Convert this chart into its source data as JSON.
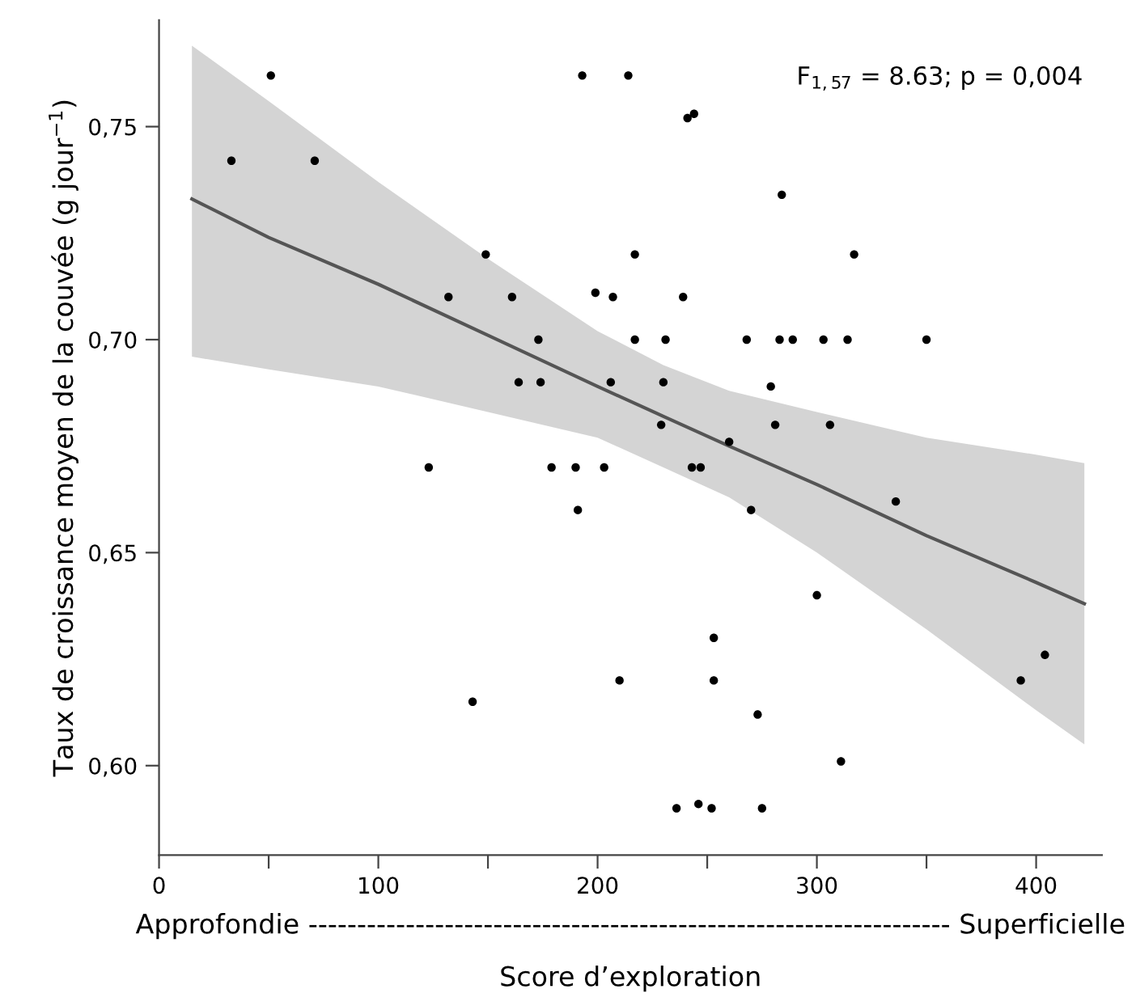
{
  "chart_data": {
    "type": "scatter",
    "xlabel": "Score d’exploration",
    "ylabel": "Taux de croissance moyen de la couvée (g jour$^{−1}$)",
    "annotations": [
      "F$_{1,57}$ = 8.63; p = 0,004",
      "Approfondie ------------------------------------------------------------------ Superficielle"
    ],
    "xlim": [
      0,
      430
    ],
    "ylim": [
      0.579,
      0.775
    ],
    "xticks": [
      0,
      {
        "value": 50,
        "label": null
      },
      100,
      {
        "value": 150,
        "label": null
      },
      200,
      {
        "value": 250,
        "label": null
      },
      300,
      {
        "value": 350,
        "label": null
      },
      400
    ],
    "yticks": [
      {
        "value": 0.6,
        "label": "0,60"
      },
      {
        "value": 0.65,
        "label": "0,65"
      },
      {
        "value": 0.7,
        "label": "0,70"
      },
      {
        "value": 0.75,
        "label": "0,75"
      }
    ],
    "grid": false,
    "legend": false,
    "series": [
      {
        "type": "line",
        "color": "#555555",
        "marker": "none",
        "line_style": "solid",
        "x": [
          15,
          50,
          100,
          150,
          200,
          230,
          260,
          300,
          350,
          400,
          422
        ],
        "values": [
          0.733,
          0.724,
          0.713,
          0.701,
          0.689,
          0.682,
          0.675,
          0.666,
          0.654,
          0.643,
          0.638
        ],
        "upper": [
          0.769,
          0.756,
          0.737,
          0.719,
          0.702,
          0.694,
          0.688,
          0.683,
          0.677,
          0.673,
          0.671
        ],
        "lower": [
          0.696,
          0.693,
          0.689,
          0.683,
          0.677,
          0.67,
          0.663,
          0.65,
          0.632,
          0.613,
          0.605
        ]
      },
      {
        "color": "#000000",
        "marker": "circle",
        "x": [
          51,
          33,
          71,
          149,
          132,
          123,
          193,
          214,
          241,
          244,
          161,
          173,
          164,
          174,
          199,
          207,
          217,
          239,
          217,
          231,
          206,
          230,
          229,
          179,
          190,
          203,
          243,
          247,
          143,
          268,
          283,
          289,
          303,
          314,
          350,
          284,
          317,
          279,
          281,
          306,
          260,
          191,
          270,
          336,
          300,
          253,
          210,
          253,
          273,
          311,
          393,
          404,
          236,
          246,
          252,
          275
        ],
        "values": [
          0.762,
          0.742,
          0.742,
          0.72,
          0.71,
          0.67,
          0.762,
          0.762,
          0.752,
          0.753,
          0.71,
          0.7,
          0.69,
          0.69,
          0.711,
          0.71,
          0.72,
          0.71,
          0.7,
          0.7,
          0.69,
          0.69,
          0.68,
          0.67,
          0.67,
          0.67,
          0.67,
          0.67,
          0.615,
          0.7,
          0.7,
          0.7,
          0.7,
          0.7,
          0.7,
          0.734,
          0.72,
          0.689,
          0.68,
          0.68,
          0.676,
          0.66,
          0.66,
          0.662,
          0.64,
          0.63,
          0.62,
          0.62,
          0.612,
          0.601,
          0.62,
          0.626,
          0.59,
          0.591,
          0.59,
          0.59
        ]
      }
    ]
  }
}
